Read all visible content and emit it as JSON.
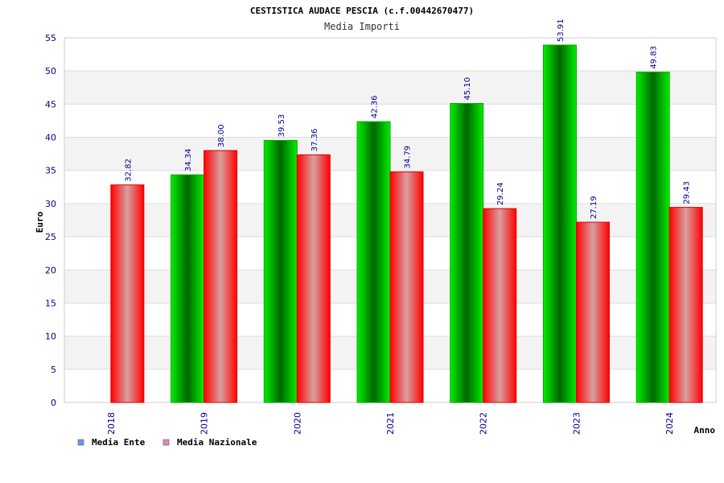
{
  "chart_data": {
    "type": "bar",
    "title": "CESTISTICA AUDACE PESCIA (c.f.00442670477)",
    "subtitle": "Media Importi",
    "xlabel": "Anno",
    "ylabel": "Euro",
    "ylim": [
      0,
      55
    ],
    "yticks": [
      "0",
      "5",
      "10",
      "15",
      "20",
      "25",
      "30",
      "35",
      "40",
      "45",
      "50",
      "55"
    ],
    "categories": [
      "2018",
      "2019",
      "2020",
      "2021",
      "2022",
      "2023",
      "2024"
    ],
    "grid": true,
    "legend_position": "bottom-left",
    "series": [
      {
        "name": "Media Ente",
        "values": [
          null,
          34.34,
          39.53,
          42.36,
          45.1,
          53.91,
          49.83
        ],
        "labels": [
          "",
          "34.34",
          "39.53",
          "42.36",
          "45.10",
          "53.91",
          "49.83"
        ],
        "color": "#00cc00",
        "legend_color": "#6699ee"
      },
      {
        "name": "Media Nazionale",
        "values": [
          32.82,
          38.0,
          37.36,
          34.79,
          29.24,
          27.19,
          29.43
        ],
        "labels": [
          "32.82",
          "38.00",
          "37.36",
          "34.79",
          "29.24",
          "27.19",
          "29.43"
        ],
        "color": "#ff1a1a",
        "legend_color": "#dd88bb"
      }
    ]
  }
}
